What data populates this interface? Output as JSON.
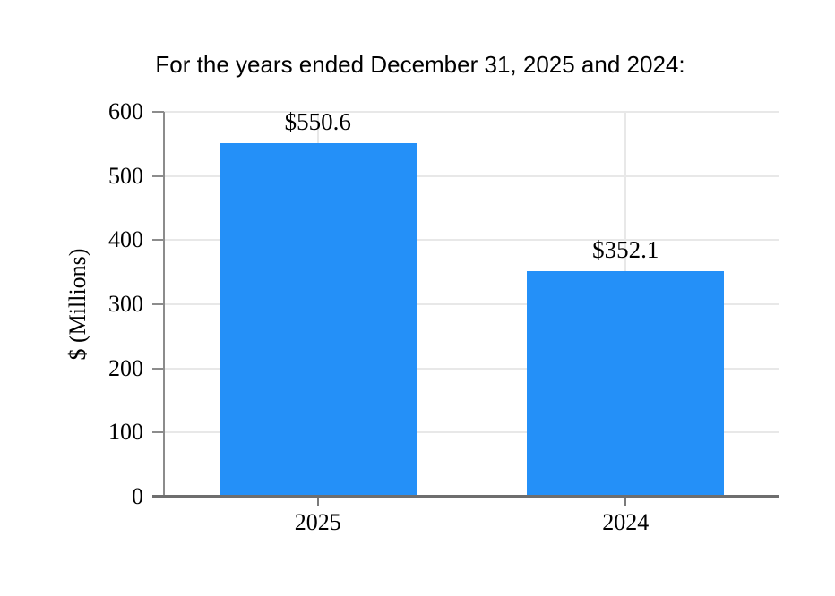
{
  "title": "For the years ended December 31, 2025 and 2024:",
  "colors": {
    "bar": "#2490f8",
    "grid": "#e8e8e8",
    "y_axis": "#8c8c8c",
    "x_axis": "#6e6e6e",
    "text": "#000000"
  },
  "chart_data": {
    "type": "bar",
    "title": "For the years ended December 31, 2025 and 2024:",
    "categories": [
      "2025",
      "2024"
    ],
    "values": [
      550.6,
      352.1
    ],
    "data_labels": [
      "$550.6",
      "$352.1"
    ],
    "xlabel": "",
    "ylabel": "$ (Millions)",
    "ylim": [
      0,
      600
    ],
    "yticks": [
      0,
      100,
      200,
      300,
      400,
      500,
      600
    ],
    "grid": "horizontal gridlines at every 100; vertical gridlines at category centers",
    "legend": "none",
    "bar_color": "#2490f8"
  }
}
